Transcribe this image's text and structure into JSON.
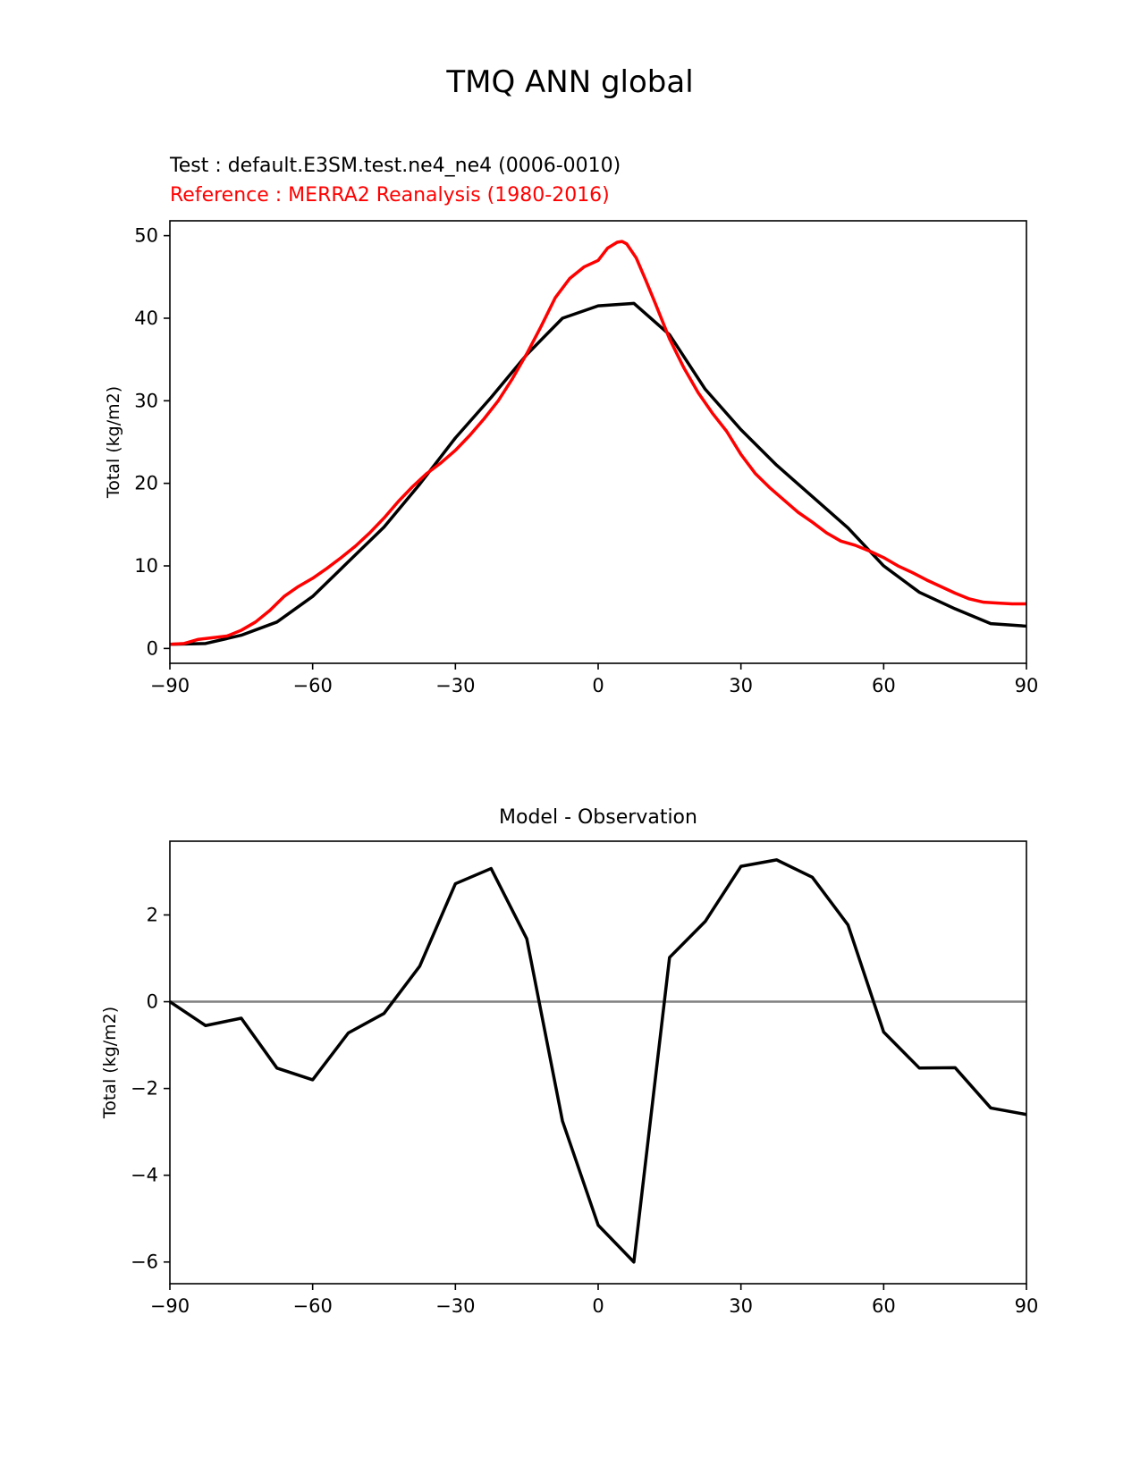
{
  "figure": {
    "suptitle": "TMQ ANN global"
  },
  "top_panel": {
    "test_label": "Test : default.E3SM.test.ne4_ne4 (0006-0010)",
    "reference_label": "Reference : MERRA2 Reanalysis (1980-2016)"
  },
  "bottom_panel": {
    "title": "Model - Observation"
  },
  "colors": {
    "test": "#000000",
    "reference": "#ff0000",
    "zero_line": "#808080"
  },
  "chart_data": [
    {
      "type": "line",
      "title": "Test : default.E3SM.test.ne4_ne4 (0006-0010)",
      "subtitle": "Reference : MERRA2 Reanalysis (1980-2016)",
      "xlabel": "",
      "ylabel": "Total (kg/m2)",
      "xlim": [
        -90,
        90
      ],
      "ylim": [
        -1.8,
        51.8
      ],
      "xticks": [
        -90,
        -60,
        -30,
        0,
        30,
        60,
        90
      ],
      "xtick_labels": [
        "−90",
        "−60",
        "−30",
        "0",
        "30",
        "60",
        "90"
      ],
      "yticks": [
        0,
        10,
        20,
        30,
        40,
        50
      ],
      "ytick_labels": [
        "0",
        "10",
        "20",
        "30",
        "40",
        "50"
      ],
      "series": [
        {
          "name": "Test",
          "color": "#000000",
          "x": [
            -90,
            -82.5,
            -75,
            -67.5,
            -60,
            -52.5,
            -45,
            -37.5,
            -30,
            -22.5,
            -15,
            -7.5,
            0,
            7.5,
            15,
            22.5,
            30,
            37.5,
            45,
            52.5,
            60,
            67.5,
            75,
            82.5,
            90
          ],
          "values": [
            0.5,
            0.6,
            1.6,
            3.2,
            6.3,
            10.5,
            14.7,
            19.9,
            25.5,
            30.4,
            35.6,
            40.0,
            41.5,
            41.8,
            38.0,
            31.4,
            26.5,
            22.2,
            18.4,
            14.6,
            10.0,
            6.8,
            4.8,
            3.0,
            2.7
          ]
        },
        {
          "name": "Reference",
          "color": "#ff0000",
          "x": [
            -90,
            -87,
            -84,
            -81,
            -78,
            -75,
            -72,
            -69,
            -66,
            -63,
            -60,
            -57,
            -54,
            -51,
            -48,
            -45,
            -42,
            -39,
            -36,
            -33,
            -30,
            -27,
            -24,
            -21,
            -18,
            -15,
            -12,
            -9,
            -6,
            -3,
            0,
            2,
            4,
            5,
            6,
            8,
            10,
            12,
            15,
            18,
            21,
            24,
            27,
            30,
            33,
            36,
            39,
            42,
            45,
            48,
            51,
            54,
            57,
            60,
            63,
            66,
            69,
            72,
            75,
            78,
            81,
            84,
            87,
            90
          ],
          "values": [
            0.5,
            0.6,
            1.1,
            1.3,
            1.5,
            2.2,
            3.2,
            4.6,
            6.3,
            7.5,
            8.5,
            9.7,
            11.0,
            12.4,
            14.0,
            15.8,
            17.8,
            19.6,
            21.2,
            22.5,
            24.0,
            25.8,
            27.8,
            30.0,
            32.7,
            35.7,
            39.0,
            42.5,
            44.8,
            46.2,
            47.0,
            48.5,
            49.2,
            49.3,
            49.0,
            47.3,
            44.6,
            41.8,
            37.5,
            34.0,
            31.0,
            28.5,
            26.3,
            23.5,
            21.2,
            19.5,
            18.0,
            16.5,
            15.3,
            14.0,
            13.0,
            12.5,
            11.8,
            11.0,
            10.0,
            9.2,
            8.3,
            7.5,
            6.7,
            6.0,
            5.6,
            5.5,
            5.4,
            5.4
          ]
        }
      ]
    },
    {
      "type": "line",
      "title": "Model - Observation",
      "xlabel": "",
      "ylabel": "Total (kg/m2)",
      "xlim": [
        -90,
        90
      ],
      "ylim": [
        -6.5,
        3.7
      ],
      "xticks": [
        -90,
        -60,
        -30,
        0,
        30,
        60,
        90
      ],
      "xtick_labels": [
        "−90",
        "−60",
        "−30",
        "0",
        "30",
        "60",
        "90"
      ],
      "yticks": [
        -6,
        -4,
        -2,
        0,
        2
      ],
      "ytick_labels": [
        "−6",
        "−4",
        "−2",
        "0",
        "2"
      ],
      "reference_line": 0,
      "series": [
        {
          "name": "Model - Observation",
          "color": "#000000",
          "x": [
            -90,
            -82.5,
            -75,
            -67.5,
            -60,
            -52.5,
            -45,
            -37.5,
            -30,
            -22.5,
            -15,
            -7.5,
            0,
            7.5,
            15,
            22.5,
            30,
            37.5,
            45,
            52.5,
            60,
            67.5,
            75,
            82.5,
            90
          ],
          "values": [
            0.0,
            -0.55,
            -0.38,
            -1.53,
            -1.8,
            -0.72,
            -0.27,
            0.82,
            2.72,
            3.07,
            1.45,
            -2.75,
            -5.15,
            -6.0,
            1.02,
            1.85,
            3.12,
            3.27,
            2.87,
            1.77,
            -0.7,
            -1.53,
            -1.52,
            -2.45,
            -2.6
          ]
        }
      ]
    }
  ]
}
